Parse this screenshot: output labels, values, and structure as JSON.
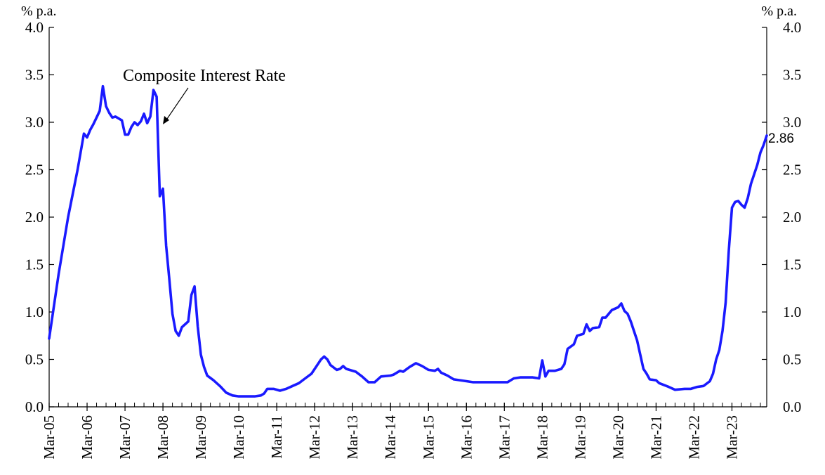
{
  "chart_data": {
    "type": "line",
    "title": "",
    "y_unit_left": "% p.a.",
    "y_unit_right": "% p.a.",
    "ylim": [
      0,
      4.0
    ],
    "y_ticks": [
      "0.0",
      "0.5",
      "1.0",
      "1.5",
      "2.0",
      "2.5",
      "3.0",
      "3.5",
      "4.0"
    ],
    "x_tick_labels": [
      "Mar-05",
      "Mar-06",
      "Mar-07",
      "Mar-08",
      "Mar-09",
      "Mar-10",
      "Mar-11",
      "Mar-12",
      "Mar-13",
      "Mar-14",
      "Mar-15",
      "Mar-16",
      "Mar-17",
      "Mar-18",
      "Mar-19",
      "Mar-20",
      "Mar-21",
      "Mar-22",
      "Mar-23"
    ],
    "x_start": "Mar-05",
    "x_end": "Sep-23",
    "annotation": "Composite Interest Rate",
    "last_value_label": "2.86",
    "line_color": "#1a1aff",
    "series": [
      {
        "points": [
          [
            "Mar-05",
            0.72
          ],
          [
            "Jun-05",
            1.4
          ],
          [
            "Sep-05",
            2.0
          ],
          [
            "Dec-05",
            2.5
          ],
          [
            "Feb-06",
            2.88
          ],
          [
            "Mar-06",
            2.84
          ],
          [
            "Apr-06",
            2.92
          ],
          [
            "May-06",
            2.98
          ],
          [
            "Jun-06",
            3.05
          ],
          [
            "Jul-06",
            3.12
          ],
          [
            "Aug-06",
            3.38
          ],
          [
            "Sep-06",
            3.17
          ],
          [
            "Oct-06",
            3.1
          ],
          [
            "Nov-06",
            3.05
          ],
          [
            "Dec-06",
            3.06
          ],
          [
            "Feb-07",
            3.02
          ],
          [
            "Mar-07",
            2.87
          ],
          [
            "Apr-07",
            2.87
          ],
          [
            "May-07",
            2.95
          ],
          [
            "Jun-07",
            3.0
          ],
          [
            "Jul-07",
            2.97
          ],
          [
            "Aug-07",
            3.01
          ],
          [
            "Sep-07",
            3.09
          ],
          [
            "Oct-07",
            2.99
          ],
          [
            "Nov-07",
            3.06
          ],
          [
            "Dec-07",
            3.34
          ],
          [
            "Jan-08",
            3.27
          ],
          [
            "Feb-08",
            2.22
          ],
          [
            "Mar-08",
            2.3
          ],
          [
            "Apr-08",
            1.7
          ],
          [
            "May-08",
            1.35
          ],
          [
            "Jun-08",
            0.98
          ],
          [
            "Jul-08",
            0.8
          ],
          [
            "Aug-08",
            0.75
          ],
          [
            "Sep-08",
            0.84
          ],
          [
            "Nov-08",
            0.9
          ],
          [
            "Dec-08",
            1.18
          ],
          [
            "Jan-09",
            1.27
          ],
          [
            "Feb-09",
            0.85
          ],
          [
            "Mar-09",
            0.55
          ],
          [
            "Apr-09",
            0.42
          ],
          [
            "May-09",
            0.33
          ],
          [
            "Jul-09",
            0.28
          ],
          [
            "Sep-09",
            0.22
          ],
          [
            "Nov-09",
            0.15
          ],
          [
            "Jan-10",
            0.12
          ],
          [
            "Mar-10",
            0.11
          ],
          [
            "Jun-10",
            0.11
          ],
          [
            "Aug-10",
            0.11
          ],
          [
            "Oct-10",
            0.12
          ],
          [
            "Nov-10",
            0.14
          ],
          [
            "Dec-10",
            0.19
          ],
          [
            "Feb-11",
            0.19
          ],
          [
            "Apr-11",
            0.17
          ],
          [
            "Jun-11",
            0.19
          ],
          [
            "Aug-11",
            0.22
          ],
          [
            "Oct-11",
            0.25
          ],
          [
            "Dec-11",
            0.3
          ],
          [
            "Feb-12",
            0.35
          ],
          [
            "Apr-12",
            0.45
          ],
          [
            "May-12",
            0.5
          ],
          [
            "Jun-12",
            0.53
          ],
          [
            "Jul-12",
            0.5
          ],
          [
            "Aug-12",
            0.44
          ],
          [
            "Oct-12",
            0.39
          ],
          [
            "Nov-12",
            0.4
          ],
          [
            "Dec-12",
            0.43
          ],
          [
            "Jan-13",
            0.4
          ],
          [
            "Apr-13",
            0.37
          ],
          [
            "Jun-13",
            0.32
          ],
          [
            "Aug-13",
            0.26
          ],
          [
            "Oct-13",
            0.26
          ],
          [
            "Dec-13",
            0.32
          ],
          [
            "Mar-14",
            0.33
          ],
          [
            "Apr-14",
            0.34
          ],
          [
            "Jun-14",
            0.38
          ],
          [
            "Jul-14",
            0.37
          ],
          [
            "Sep-14",
            0.42
          ],
          [
            "Nov-14",
            0.46
          ],
          [
            "Jan-15",
            0.43
          ],
          [
            "Mar-15",
            0.39
          ],
          [
            "May-15",
            0.38
          ],
          [
            "Jun-15",
            0.4
          ],
          [
            "Jul-15",
            0.36
          ],
          [
            "Sep-15",
            0.33
          ],
          [
            "Nov-15",
            0.29
          ],
          [
            "Mar-16",
            0.27
          ],
          [
            "May-16",
            0.26
          ],
          [
            "Jul-16",
            0.26
          ],
          [
            "Oct-16",
            0.26
          ],
          [
            "Dec-16",
            0.26
          ],
          [
            "Feb-17",
            0.26
          ],
          [
            "Apr-17",
            0.26
          ],
          [
            "Jun-17",
            0.3
          ],
          [
            "Aug-17",
            0.31
          ],
          [
            "Oct-17",
            0.31
          ],
          [
            "Dec-17",
            0.31
          ],
          [
            "Feb-18",
            0.3
          ],
          [
            "Mar-18",
            0.49
          ],
          [
            "Apr-18",
            0.32
          ],
          [
            "May-18",
            0.38
          ],
          [
            "Jul-18",
            0.38
          ],
          [
            "Sep-18",
            0.4
          ],
          [
            "Oct-18",
            0.45
          ],
          [
            "Nov-18",
            0.61
          ],
          [
            "Jan-19",
            0.66
          ],
          [
            "Feb-19",
            0.75
          ],
          [
            "Apr-19",
            0.77
          ],
          [
            "May-19",
            0.87
          ],
          [
            "Jun-19",
            0.8
          ],
          [
            "Jul-19",
            0.83
          ],
          [
            "Sep-19",
            0.84
          ],
          [
            "Oct-19",
            0.94
          ],
          [
            "Nov-19",
            0.94
          ],
          [
            "Jan-20",
            1.02
          ],
          [
            "Mar-20",
            1.05
          ],
          [
            "Apr-20",
            1.09
          ],
          [
            "May-20",
            1.01
          ],
          [
            "Jun-20",
            0.98
          ],
          [
            "Jul-20",
            0.9
          ],
          [
            "Sep-20",
            0.7
          ],
          [
            "Oct-20",
            0.55
          ],
          [
            "Nov-20",
            0.4
          ],
          [
            "Dec-20",
            0.35
          ],
          [
            "Jan-21",
            0.29
          ],
          [
            "Mar-21",
            0.28
          ],
          [
            "Apr-21",
            0.25
          ],
          [
            "Jul-21",
            0.21
          ],
          [
            "Sep-21",
            0.18
          ],
          [
            "Dec-21",
            0.19
          ],
          [
            "Feb-22",
            0.19
          ],
          [
            "Apr-22",
            0.21
          ],
          [
            "Jun-22",
            0.22
          ],
          [
            "Aug-22",
            0.27
          ],
          [
            "Sep-22",
            0.35
          ],
          [
            "Oct-22",
            0.5
          ],
          [
            "Nov-22",
            0.6
          ],
          [
            "Dec-22",
            0.8
          ],
          [
            "Jan-23",
            1.1
          ],
          [
            "Feb-23",
            1.65
          ],
          [
            "Mar-23",
            2.1
          ],
          [
            "Apr-23",
            2.16
          ],
          [
            "May-23",
            2.17
          ],
          [
            "Jun-23",
            2.13
          ],
          [
            "Jul-23",
            2.1
          ],
          [
            "Aug-23",
            2.2
          ],
          [
            "Sep-23",
            2.35
          ],
          [
            "Oct-23",
            2.45
          ],
          [
            "Nov-23",
            2.55
          ],
          [
            "Dec-23",
            2.68
          ],
          [
            "Jan-24",
            2.76
          ],
          [
            "Feb-24",
            2.86
          ]
        ]
      }
    ]
  }
}
